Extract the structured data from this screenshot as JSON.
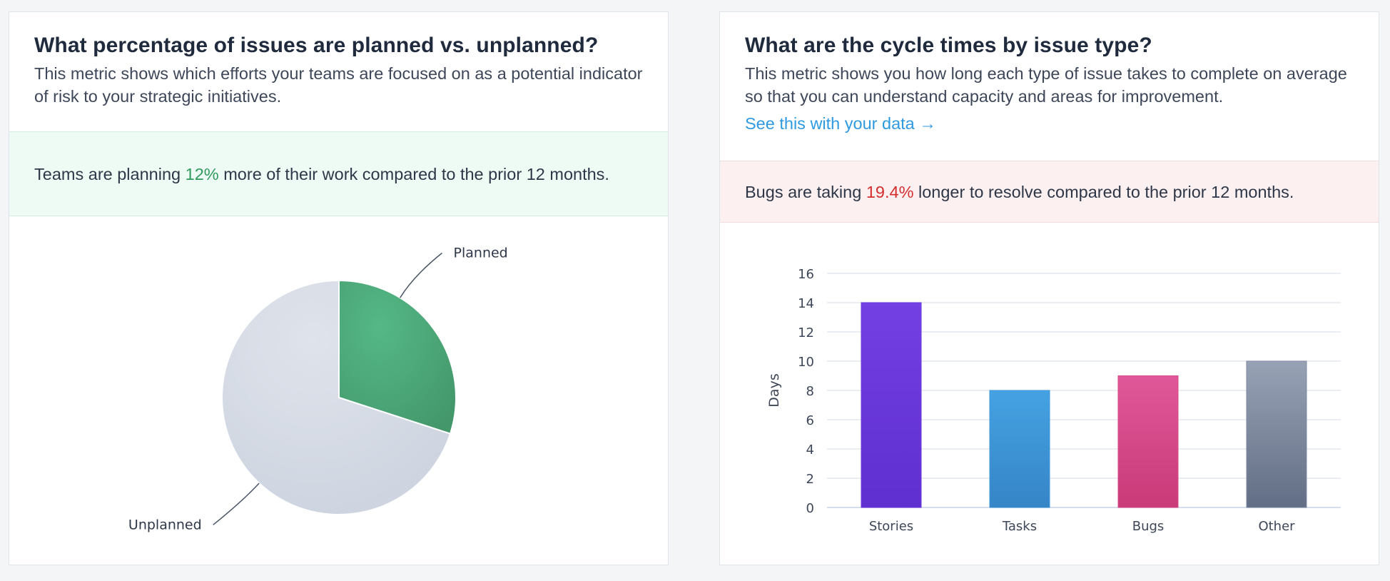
{
  "left_card": {
    "title": "What percentage of issues are planned vs. unplanned?",
    "description": "This metric shows which efforts your teams are focused on as a potential indicator of risk to your strategic initiatives.",
    "callout": {
      "prefix": "Teams are planning ",
      "highlight": "12%",
      "suffix": " more of their work compared to the prior 12 months."
    }
  },
  "right_card": {
    "title": "What are the cycle times by issue type?",
    "description": "This metric shows you how long each type of issue takes to complete on average so that you can understand capacity and areas for improvement.",
    "link": "See this with your data →",
    "callout": {
      "prefix": "Bugs are taking ",
      "highlight": "19.4%",
      "suffix": " longer to resolve compared to the prior 12 months."
    }
  },
  "colors": {
    "positive": "#2f9a5e",
    "negative": "#d32f2f",
    "link": "#2f9ae0"
  },
  "chart_data": [
    {
      "type": "pie",
      "labels": [
        "Planned",
        "Unplanned"
      ],
      "values": [
        30,
        70
      ],
      "colors": [
        "#4fab79",
        "#d5dbe5"
      ],
      "legend": false
    },
    {
      "type": "bar",
      "categories": [
        "Stories",
        "Tasks",
        "Bugs",
        "Other"
      ],
      "values": [
        14,
        8,
        9,
        10
      ],
      "colors": [
        "#6a38dd",
        "#3f97d8",
        "#d84c8a",
        "#7e8aa0"
      ],
      "xlabel": "",
      "ylabel": "Days",
      "ylim": [
        0,
        16
      ],
      "yticks": [
        0,
        2,
        4,
        6,
        8,
        10,
        12,
        14,
        16
      ],
      "grid": true
    }
  ]
}
